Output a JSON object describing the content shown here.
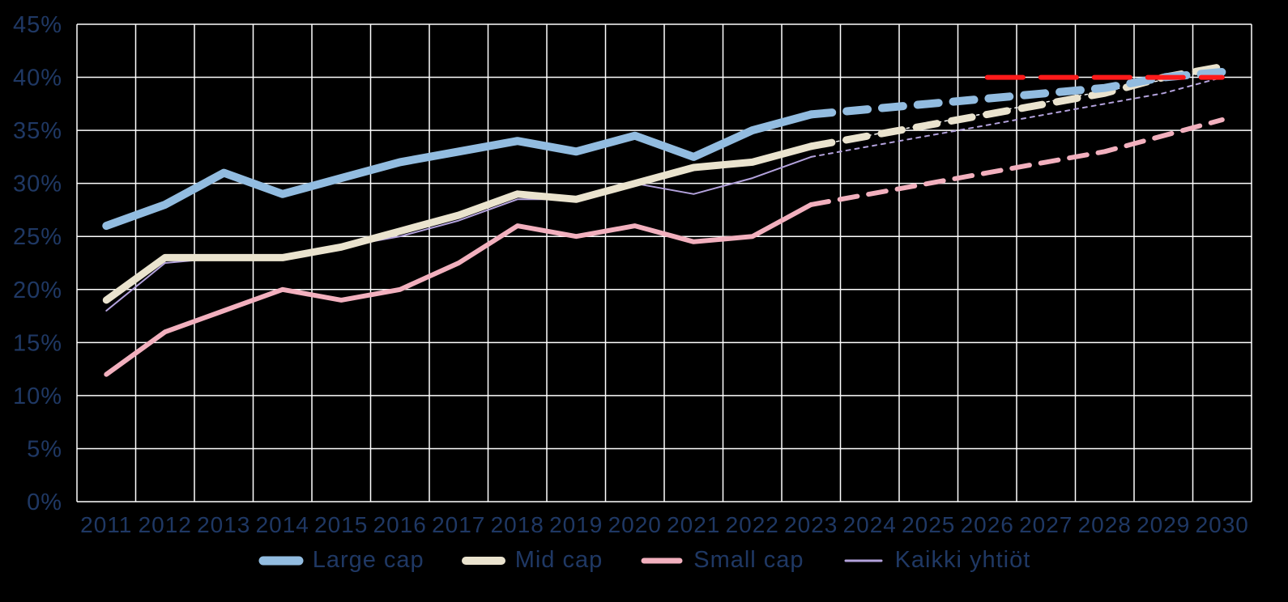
{
  "chart_data": {
    "type": "line",
    "title": "",
    "xlabel": "",
    "ylabel": "",
    "ylim": [
      0,
      45
    ],
    "y_tick_step": 5,
    "y_tick_labels": [
      "0%",
      "5%",
      "10%",
      "15%",
      "20%",
      "25%",
      "30%",
      "35%",
      "40%",
      "45%"
    ],
    "grid": true,
    "grid_color": "#FFFFFF",
    "background_color": "#000000",
    "label_color": "#1F3864",
    "legend_position": "bottom",
    "categories": [
      "2011",
      "2012",
      "2013",
      "2014",
      "2015",
      "2016",
      "2017",
      "2018",
      "2019",
      "2020",
      "2021",
      "2022",
      "2023",
      "2024",
      "2025",
      "2026",
      "2027",
      "2028",
      "2029",
      "2030"
    ],
    "forecast_split_index": 12,
    "forecast_note": "values after 2023 are drawn as dashed forecast lines",
    "series": [
      {
        "name": "Large cap",
        "color": "#92BCE0",
        "width": 10,
        "dash": "26 18",
        "values": [
          26,
          28,
          31,
          29,
          30.5,
          32,
          33,
          34,
          33,
          34.5,
          32.5,
          35,
          36.5,
          37,
          37.5,
          38,
          38.5,
          39,
          40,
          40.5
        ]
      },
      {
        "name": "Mid cap",
        "color": "#EAE3CE",
        "width": 9,
        "dash": "26 18",
        "values": [
          19,
          23,
          23,
          23,
          24,
          25.5,
          27,
          29,
          28.5,
          30,
          31.5,
          32,
          33.5,
          34.5,
          35.5,
          36.5,
          37.5,
          38.5,
          40,
          41
        ]
      },
      {
        "name": "Small cap",
        "color": "#F2B0BE",
        "width": 6,
        "dash": "22 14",
        "values": [
          12,
          16,
          18,
          20,
          19,
          20,
          22.5,
          26,
          25,
          26,
          24.5,
          25,
          28,
          29,
          30,
          31,
          32,
          33,
          34.5,
          36
        ]
      },
      {
        "name": "Kaikki yhtiöt",
        "color": "#B3A2DC",
        "width": 2,
        "dash": "5 6",
        "values": [
          18,
          22.5,
          23,
          23,
          24,
          25,
          26.5,
          28.5,
          28.5,
          30,
          29,
          30.5,
          32.5,
          33.5,
          34.5,
          35.5,
          36.5,
          37.5,
          38.5,
          40
        ]
      }
    ],
    "target_line": {
      "value": 40,
      "start_year": "2026",
      "end_year": "2030",
      "color": "#FF1A1A",
      "width": 6,
      "dash": "44 22"
    },
    "trendline": {
      "from_year": "2023",
      "from_value": 33.5,
      "to_year": "2030",
      "to_value": 40.8,
      "color": "#FFFFFF",
      "width": 1.5,
      "dash": "3 5"
    }
  },
  "legend": {
    "items": [
      "Large cap",
      "Mid cap",
      "Small cap",
      "Kaikki yhtiöt"
    ]
  }
}
